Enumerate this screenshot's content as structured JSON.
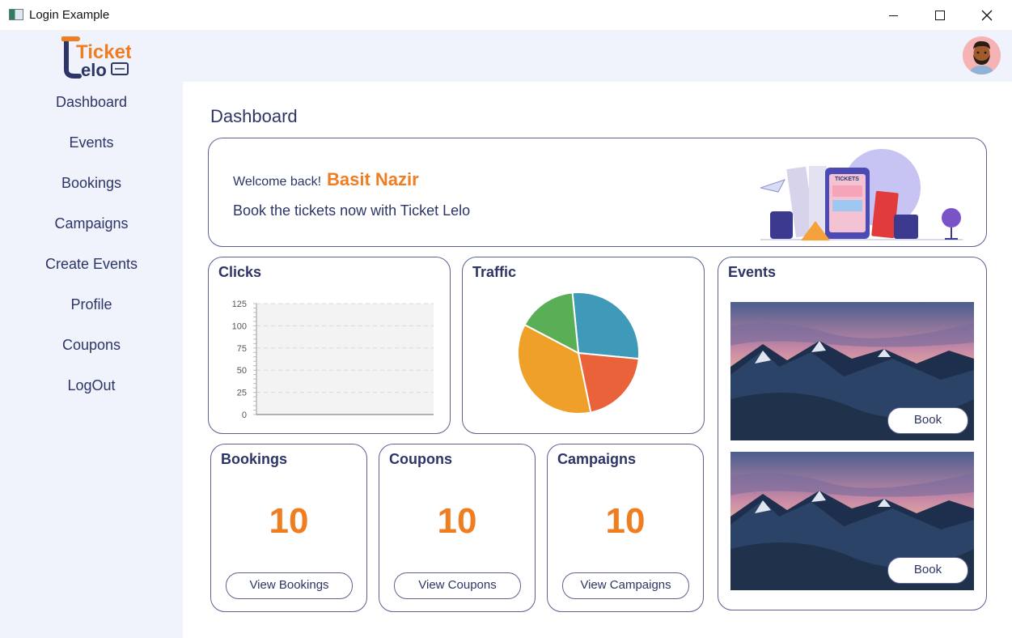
{
  "window": {
    "title": "Login Example"
  },
  "brand": {
    "logo_top": "Ticket",
    "logo_bottom": "elo",
    "logo_letter": "L"
  },
  "sidebar": {
    "items": [
      {
        "label": "Dashboard"
      },
      {
        "label": "Events"
      },
      {
        "label": "Bookings"
      },
      {
        "label": "Campaigns"
      },
      {
        "label": "Create Events"
      },
      {
        "label": "Profile"
      },
      {
        "label": "Coupons"
      },
      {
        "label": "LogOut"
      }
    ]
  },
  "main": {
    "page_title": "Dashboard",
    "welcome": {
      "greeting": "Welcome back!",
      "user_name": "Basit Nazir",
      "subtitle": "Book the tickets now with Ticket Lelo",
      "illustration_sign": "TICKETS"
    },
    "clicks": {
      "title": "Clicks"
    },
    "traffic": {
      "title": "Traffic"
    },
    "events": {
      "title": "Events",
      "book_label": "Book"
    },
    "stats": {
      "bookings": {
        "title": "Bookings",
        "value": "10",
        "button": "View Bookings"
      },
      "coupons": {
        "title": "Coupons",
        "value": "10",
        "button": "View Coupons"
      },
      "campaigns": {
        "title": "Campaigns",
        "value": "10",
        "button": "View Campaigns"
      }
    }
  },
  "colors": {
    "accent": "#ef7d22",
    "text": "#2c3566",
    "border": "#5a6190",
    "sidebar_bg": "#f0f3fc"
  },
  "chart_data": [
    {
      "type": "bar",
      "title": "Clicks",
      "categories": [],
      "values": [],
      "ylim": [
        0,
        125
      ],
      "yticks": [
        0,
        25,
        50,
        75,
        100,
        125
      ],
      "grid": true
    },
    {
      "type": "pie",
      "title": "Traffic",
      "slices": [
        {
          "value": 25,
          "color": "#3f9ab9"
        },
        {
          "value": 18,
          "color": "#e9623a"
        },
        {
          "value": 32,
          "color": "#eea028"
        },
        {
          "value": 14,
          "color": "#5aae55"
        }
      ]
    }
  ],
  "icons": {
    "minimize": "minimize-icon",
    "maximize": "maximize-icon",
    "close": "close-icon",
    "avatar": "user-avatar-icon"
  }
}
